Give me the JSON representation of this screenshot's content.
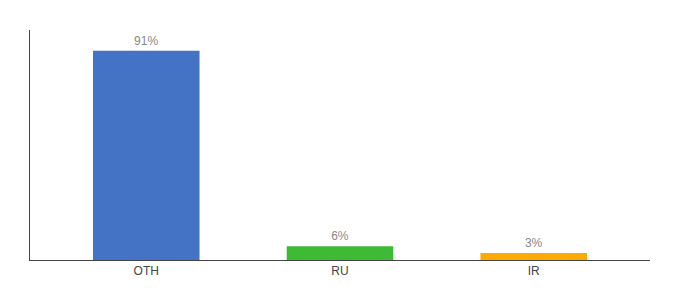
{
  "chart_data": {
    "type": "bar",
    "categories": [
      "OTH",
      "RU",
      "IR"
    ],
    "values": [
      91,
      6,
      3
    ],
    "value_labels": [
      "91%",
      "6%",
      "3%"
    ],
    "data_labels": true,
    "colors": [
      "#4472c4",
      "#3dbb35",
      "#ffaa00"
    ],
    "ylim": [
      0,
      100
    ],
    "tick_labels": "x",
    "grid": false
  }
}
